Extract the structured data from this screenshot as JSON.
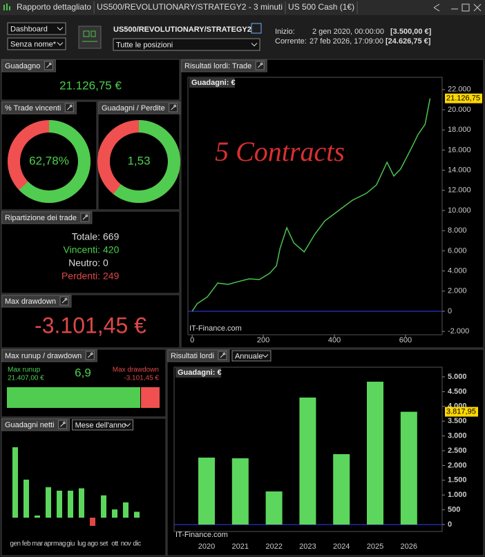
{
  "titlebar": {
    "tabs": [
      "Rapporto dettagliato",
      "US500/REVOLUTIONARY/STRATEGY2 - 3 minuti",
      "US 500 Cash (1€)"
    ]
  },
  "toolbar": {
    "dashboard": "Dashboard",
    "layout": "Senza nome*",
    "strategy": "US500/REVOLUTIONARY/STRATEGY2",
    "positions": "Tutte le posizioni",
    "start_label": "Inizio:",
    "start_date": "2 gen 2020, 00:00:00",
    "start_capital": "[3.500,00 €]",
    "current_label": "Corrente:",
    "current_date": "27 feb 2026, 17:09:00",
    "current_capital": "[24.626,75 €]"
  },
  "gain": {
    "title": "Guadagno",
    "value": "21.126,75 €"
  },
  "win_rate": {
    "title": "% Trade vincenti",
    "value": 62.78,
    "label": "62,78%"
  },
  "profit_factor": {
    "title": "Guadagni / Perdite",
    "value": 1.53,
    "label": "1,53"
  },
  "trades": {
    "title": "Ripartizione dei trade",
    "rows": [
      {
        "label": "Totale:",
        "value": 669
      },
      {
        "label": "Vincenti:",
        "value": 420
      },
      {
        "label": "Neutro:",
        "value": 0
      },
      {
        "label": "Perdenti:",
        "value": 249
      }
    ]
  },
  "max_drawdown": {
    "title": "Max drawdown",
    "value": "-3.101,45 €"
  },
  "runup": {
    "title": "Max runup / drawdown",
    "runup_label": "Max runup",
    "runup": 21407,
    "runup_text": "21.407,00 €",
    "ratio": "6,9",
    "drawdown_label": "Max drawdown",
    "drawdown": -3101.45,
    "drawdown_text": "-3.101,45 €"
  },
  "equity_chart": {
    "type": "line",
    "title": "Risultati lordi: Trade",
    "axis_label": "Guadagni: €",
    "annotation": "5 Contracts",
    "watermark": "IT-Finance.com",
    "color": "#4cc44c",
    "x": [
      0,
      14,
      43,
      72,
      101,
      130,
      160,
      189,
      218,
      237,
      247,
      266,
      286,
      315,
      344,
      373,
      412,
      451,
      490,
      518,
      548,
      567,
      586,
      616,
      635,
      655,
      669
    ],
    "values": [
      0,
      750,
      1440,
      2800,
      2670,
      2950,
      3220,
      3150,
      3770,
      4520,
      6230,
      8290,
      6780,
      5890,
      7600,
      8970,
      10000,
      11030,
      11710,
      12530,
      14790,
      13420,
      14110,
      16160,
      17530,
      18560,
      21126.75
    ],
    "last_label": "21.126,75",
    "xlim": [
      -12,
      703
    ],
    "ylim": [
      -2330,
      22330
    ],
    "xticks": [
      0,
      200,
      400,
      600
    ],
    "yticks": [
      {
        "value": -2000,
        "label": "-2.000"
      },
      0,
      {
        "value": 2000,
        "label": "2.000"
      },
      {
        "value": 4000,
        "label": "4.000"
      },
      {
        "value": 6000,
        "label": "6.000"
      },
      {
        "value": 8000,
        "label": "8.000"
      },
      {
        "value": 10000,
        "label": "10.000"
      },
      {
        "value": 12000,
        "label": "12.000"
      },
      {
        "value": 14000,
        "label": "14.000"
      },
      {
        "value": 16000,
        "label": "16.000"
      },
      {
        "value": 18000,
        "label": "18.000"
      },
      {
        "value": 20000,
        "label": "20.000"
      },
      {
        "value": 22000,
        "label": "22.000"
      }
    ]
  },
  "annual_chart": {
    "type": "bar",
    "title": "Risultati lordi",
    "period": "Annuale",
    "axis_label": "Guadagni: €",
    "watermark": "IT-Finance.com",
    "color": "#5cd65c",
    "categories": [
      "2020",
      "2021",
      "2022",
      "2023",
      "2024",
      "2025",
      "2026"
    ],
    "values": [
      2266,
      2243,
      1121,
      4299,
      2383,
      4836,
      3817.95
    ],
    "last_label": "3.817,95",
    "ylim": [
      -234,
      5327
    ],
    "yticks": [
      0,
      500,
      {
        "value": 1000,
        "label": "1.000"
      },
      {
        "value": 1500,
        "label": "1.500"
      },
      {
        "value": 2000,
        "label": "2.000"
      },
      {
        "value": 2500,
        "label": "2.500"
      },
      {
        "value": 3000,
        "label": "3.000"
      },
      {
        "value": 3500,
        "label": "3.500"
      },
      {
        "value": 4000,
        "label": "4.000"
      },
      {
        "value": 4500,
        "label": "4.500"
      },
      {
        "value": 5000,
        "label": "5.000"
      }
    ]
  },
  "monthly_chart": {
    "type": "bar",
    "title": "Guadagni netti",
    "period": "Mese dell'anno",
    "color": "#5cd65c",
    "negative_color": "#e04848",
    "categories": [
      "gen",
      "feb",
      "mar",
      "apr",
      "mag",
      "giu",
      "lug",
      "ago",
      "set",
      "ott",
      "nov",
      "dic"
    ],
    "values": [
      3000,
      1620,
      90,
      1300,
      1150,
      1150,
      1250,
      -350,
      950,
      350,
      650,
      250
    ]
  }
}
